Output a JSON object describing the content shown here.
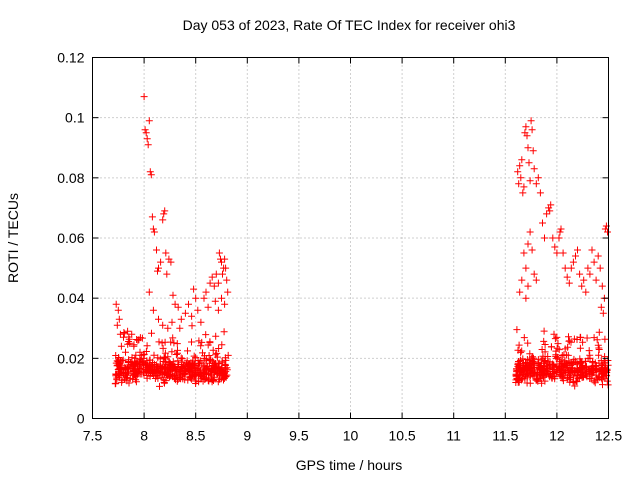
{
  "chart_data": {
    "type": "scatter",
    "title": "Day 053 of 2023, Rate Of TEC Index for receiver ohi3",
    "xlabel": "GPS time / hours",
    "ylabel": "ROTI / TECUs",
    "xlim": [
      7.5,
      12.5
    ],
    "ylim": [
      0,
      0.12
    ],
    "xticks": [
      "7.5",
      "8",
      "8.5",
      "9",
      "9.5",
      "10",
      "10.5",
      "11",
      "11.5",
      "12",
      "12.5"
    ],
    "yticks": [
      "0",
      "0.02",
      "0.04",
      "0.06",
      "0.08",
      "0.1",
      "0.12"
    ],
    "grid": true,
    "marker": "+",
    "point_color": "#ff0000",
    "series": [
      {
        "points": [
          [
            7.73,
            0.038
          ],
          [
            7.74,
            0.031
          ],
          [
            7.75,
            0.036
          ],
          [
            7.76,
            0.033
          ],
          [
            7.77,
            0.028
          ],
          [
            7.78,
            0.024
          ],
          [
            7.8,
            0.027
          ],
          [
            7.82,
            0.022
          ],
          [
            7.84,
            0.029
          ],
          [
            7.86,
            0.025
          ],
          [
            7.88,
            0.028
          ],
          [
            7.9,
            0.024
          ],
          [
            7.92,
            0.021
          ],
          [
            7.94,
            0.026
          ],
          [
            7.96,
            0.022
          ],
          [
            7.98,
            0.019
          ],
          [
            8.0,
            0.107
          ],
          [
            8.01,
            0.096
          ],
          [
            8.02,
            0.095
          ],
          [
            8.03,
            0.093
          ],
          [
            8.04,
            0.091
          ],
          [
            8.05,
            0.099
          ],
          [
            8.06,
            0.082
          ],
          [
            8.07,
            0.081
          ],
          [
            8.08,
            0.067
          ],
          [
            8.09,
            0.063
          ],
          [
            8.1,
            0.062
          ],
          [
            8.12,
            0.056
          ],
          [
            8.13,
            0.049
          ],
          [
            8.14,
            0.05
          ],
          [
            8.16,
            0.052
          ],
          [
            8.18,
            0.066
          ],
          [
            8.19,
            0.068
          ],
          [
            8.2,
            0.069
          ],
          [
            8.21,
            0.055
          ],
          [
            8.22,
            0.048
          ],
          [
            8.24,
            0.053
          ],
          [
            8.26,
            0.052
          ],
          [
            8.28,
            0.041
          ],
          [
            8.3,
            0.038
          ],
          [
            8.05,
            0.042
          ],
          [
            8.09,
            0.036
          ],
          [
            8.14,
            0.033
          ],
          [
            8.18,
            0.031
          ],
          [
            8.23,
            0.03
          ],
          [
            8.27,
            0.032
          ],
          [
            8.33,
            0.037
          ],
          [
            8.36,
            0.033
          ],
          [
            8.4,
            0.035
          ],
          [
            8.43,
            0.038
          ],
          [
            8.46,
            0.034
          ],
          [
            8.48,
            0.043
          ],
          [
            8.5,
            0.04
          ],
          [
            8.52,
            0.036
          ],
          [
            8.55,
            0.032
          ],
          [
            8.58,
            0.04
          ],
          [
            8.6,
            0.042
          ],
          [
            8.62,
            0.037
          ],
          [
            8.64,
            0.045
          ],
          [
            8.66,
            0.047
          ],
          [
            8.68,
            0.044
          ],
          [
            8.7,
            0.048
          ],
          [
            8.72,
            0.045
          ],
          [
            8.73,
            0.055
          ],
          [
            8.74,
            0.053
          ],
          [
            8.75,
            0.052
          ],
          [
            8.76,
            0.048
          ],
          [
            8.77,
            0.05
          ],
          [
            8.78,
            0.053
          ],
          [
            8.79,
            0.05
          ],
          [
            8.8,
            0.046
          ],
          [
            8.81,
            0.042
          ],
          [
            8.78,
            0.038
          ],
          [
            8.75,
            0.04
          ],
          [
            8.72,
            0.036
          ],
          [
            8.69,
            0.039
          ],
          [
            11.62,
            0.082
          ],
          [
            11.63,
            0.078
          ],
          [
            11.64,
            0.084
          ],
          [
            11.65,
            0.08
          ],
          [
            11.66,
            0.086
          ],
          [
            11.67,
            0.075
          ],
          [
            11.68,
            0.077
          ],
          [
            11.69,
            0.095
          ],
          [
            11.7,
            0.097
          ],
          [
            11.71,
            0.094
          ],
          [
            11.72,
            0.09
          ],
          [
            11.73,
            0.085
          ],
          [
            11.74,
            0.079
          ],
          [
            11.75,
            0.099
          ],
          [
            11.76,
            0.096
          ],
          [
            11.77,
            0.089
          ],
          [
            11.78,
            0.083
          ],
          [
            11.8,
            0.078
          ],
          [
            11.82,
            0.08
          ],
          [
            11.84,
            0.075
          ],
          [
            11.86,
            0.065
          ],
          [
            11.88,
            0.06
          ],
          [
            11.9,
            0.068
          ],
          [
            11.92,
            0.07
          ],
          [
            11.93,
            0.069
          ],
          [
            11.94,
            0.071
          ],
          [
            11.96,
            0.06
          ],
          [
            11.98,
            0.057
          ],
          [
            12.0,
            0.055
          ],
          [
            12.02,
            0.06
          ],
          [
            12.03,
            0.062
          ],
          [
            12.04,
            0.063
          ],
          [
            12.06,
            0.055
          ],
          [
            12.08,
            0.05
          ],
          [
            12.1,
            0.047
          ],
          [
            12.12,
            0.045
          ],
          [
            12.14,
            0.05
          ],
          [
            12.16,
            0.052
          ],
          [
            12.18,
            0.054
          ],
          [
            12.2,
            0.056
          ],
          [
            12.22,
            0.048
          ],
          [
            12.24,
            0.044
          ],
          [
            12.26,
            0.046
          ],
          [
            12.28,
            0.042
          ],
          [
            12.3,
            0.05
          ],
          [
            12.32,
            0.048
          ],
          [
            12.34,
            0.056
          ],
          [
            12.36,
            0.052
          ],
          [
            12.38,
            0.046
          ],
          [
            12.4,
            0.054
          ],
          [
            12.42,
            0.05
          ],
          [
            12.44,
            0.044
          ],
          [
            12.46,
            0.04
          ],
          [
            12.47,
            0.063
          ],
          [
            12.48,
            0.064
          ],
          [
            12.49,
            0.062
          ],
          [
            12.45,
            0.035
          ],
          [
            12.43,
            0.037
          ],
          [
            11.68,
            0.055
          ],
          [
            11.7,
            0.05
          ],
          [
            11.72,
            0.058
          ],
          [
            11.74,
            0.062
          ],
          [
            11.76,
            0.056
          ],
          [
            11.78,
            0.048
          ],
          [
            11.8,
            0.046
          ],
          [
            11.72,
            0.044
          ],
          [
            11.66,
            0.046
          ],
          [
            11.64,
            0.042
          ],
          [
            11.7,
            0.04
          ]
        ]
      }
    ]
  }
}
